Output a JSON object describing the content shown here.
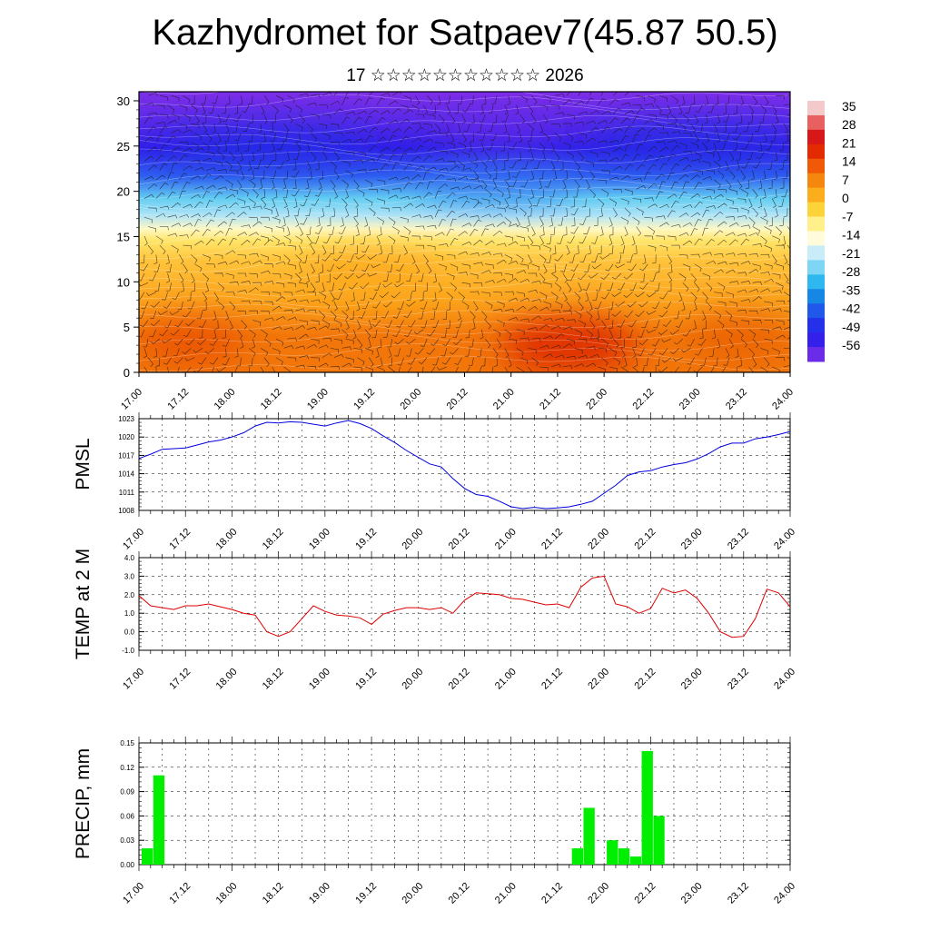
{
  "header": {
    "title": "Kazhydromet for Satpaev7(45.87 50.5)",
    "subtitle": "17 ☆☆☆☆☆☆☆☆☆☆☆ 2026"
  },
  "chart_data": [
    {
      "type": "heatmap",
      "name": "vertical-cross-section",
      "title": "Kazhydromet for Satpaev7(45.87 50.5)",
      "x_ticks": [
        "17.00",
        "17.12",
        "18.00",
        "18.12",
        "19.00",
        "19.12",
        "20.00",
        "20.12",
        "21.00",
        "21.12",
        "22.00",
        "22.12",
        "23.00",
        "23.12",
        "24.00"
      ],
      "y_ticks": [
        "0",
        "5",
        "10",
        "15",
        "20",
        "25",
        "30"
      ],
      "ylim": [
        0,
        31
      ],
      "colorbar_labels": [
        "35",
        "28",
        "21",
        "14",
        "7",
        "0",
        "-7",
        "-14",
        "-21",
        "-28",
        "-35",
        "-42",
        "-49",
        "-56"
      ],
      "colors": {
        "warm_peak": "#dd2a05",
        "warm": "#f2760a",
        "orange": "#fca51d",
        "yellow": "#ffe56a",
        "pale": "#fff8c2",
        "cyan": "#63cdf2",
        "blue": "#2f5ff0",
        "deep_blue": "#3020e8",
        "violet": "#7f2fe8"
      }
    },
    {
      "type": "line",
      "name": "pmsl",
      "ylabel": "PMSL",
      "ylim": [
        1008,
        1023
      ],
      "y_ticks": [
        "1023",
        "1020",
        "1017",
        "1014",
        "1011",
        "1008"
      ],
      "x_ticks": [
        "17.00",
        "17.12",
        "18.00",
        "18.12",
        "19.00",
        "19.12",
        "20.00",
        "20.12",
        "21.00",
        "21.12",
        "22.00",
        "22.12",
        "23.00",
        "23.12",
        "24.00"
      ],
      "color": "#0000dd",
      "x": [
        0,
        3,
        6,
        9,
        12,
        15,
        18,
        21,
        24,
        27,
        30,
        33,
        36,
        39,
        42,
        45,
        48,
        51,
        54,
        57,
        60,
        63,
        66,
        69,
        72,
        75,
        78,
        81,
        84,
        87,
        90,
        93,
        96,
        99,
        102,
        105,
        108,
        111,
        114,
        117,
        120,
        123,
        126,
        129,
        132,
        135,
        138,
        141,
        144,
        147,
        150,
        153,
        156,
        159,
        162,
        165,
        168
      ],
      "values": [
        1016.5,
        1017.2,
        1018.0,
        1018.1,
        1018.2,
        1018.7,
        1019.2,
        1019.5,
        1020.0,
        1020.7,
        1021.8,
        1022.4,
        1022.3,
        1022.5,
        1022.4,
        1022.1,
        1021.8,
        1022.3,
        1022.7,
        1022.2,
        1021.4,
        1020.2,
        1019.1,
        1017.8,
        1016.7,
        1015.6,
        1015.1,
        1013.2,
        1011.6,
        1010.6,
        1010.3,
        1009.5,
        1008.6,
        1008.3,
        1008.5,
        1008.3,
        1008.4,
        1008.6,
        1009.0,
        1009.5,
        1010.8,
        1012.1,
        1013.7,
        1014.3,
        1014.5,
        1015.1,
        1015.5,
        1015.8,
        1016.4,
        1017.3,
        1018.4,
        1019.0,
        1019.0,
        1019.7,
        1020.0,
        1020.4,
        1020.9
      ]
    },
    {
      "type": "line",
      "name": "temp-2m",
      "ylabel": "TEMP at 2 M",
      "ylim": [
        -1.0,
        4.0
      ],
      "y_ticks": [
        "4.0",
        "3.0",
        "2.0",
        "1.0",
        "0.0",
        "-1.0"
      ],
      "x_ticks": [
        "17.00",
        "17.12",
        "18.00",
        "18.12",
        "19.00",
        "19.12",
        "20.00",
        "20.12",
        "21.00",
        "21.12",
        "22.00",
        "22.12",
        "23.00",
        "23.12",
        "24.00"
      ],
      "color": "#dd0000",
      "x": [
        0,
        3,
        6,
        9,
        12,
        15,
        18,
        21,
        24,
        27,
        30,
        33,
        36,
        39,
        42,
        45,
        48,
        51,
        54,
        57,
        60,
        63,
        66,
        69,
        72,
        75,
        78,
        81,
        84,
        87,
        90,
        93,
        96,
        99,
        102,
        105,
        108,
        111,
        114,
        117,
        120,
        123,
        126,
        129,
        132,
        135,
        138,
        141,
        144,
        147,
        150,
        153,
        156,
        159,
        162,
        165,
        168
      ],
      "values": [
        1.95,
        1.4,
        1.3,
        1.2,
        1.4,
        1.4,
        1.5,
        1.35,
        1.2,
        1.0,
        0.9,
        0.0,
        -0.25,
        0.0,
        0.7,
        1.4,
        1.1,
        0.9,
        0.85,
        0.75,
        0.4,
        0.95,
        1.15,
        1.3,
        1.3,
        1.2,
        1.3,
        1.0,
        1.7,
        2.1,
        2.05,
        2.0,
        1.8,
        1.75,
        1.6,
        1.45,
        1.5,
        1.3,
        2.4,
        2.9,
        3.0,
        1.5,
        1.35,
        1.0,
        1.25,
        2.35,
        2.1,
        2.25,
        1.8,
        1.0,
        0.0,
        -0.3,
        -0.25,
        0.7,
        2.3,
        2.1,
        1.35
      ]
    },
    {
      "type": "bar",
      "name": "precip",
      "ylabel": "PRECIP, mm",
      "ylim": [
        0,
        0.15
      ],
      "y_ticks": [
        "0.15",
        "0.12",
        "0.09",
        "0.06",
        "0.03",
        "0.00"
      ],
      "x_ticks": [
        "17.00",
        "17.12",
        "18.00",
        "18.12",
        "19.00",
        "19.12",
        "20.00",
        "20.12",
        "21.00",
        "21.12",
        "22.00",
        "22.12",
        "23.00",
        "23.12",
        "24.00"
      ],
      "color": "#00ee00",
      "x": [
        0,
        3,
        111,
        114,
        120,
        123,
        126,
        129,
        132
      ],
      "values": [
        0.02,
        0.11,
        0.02,
        0.07,
        0.03,
        0.02,
        0.01,
        0.14,
        0.06
      ]
    }
  ]
}
